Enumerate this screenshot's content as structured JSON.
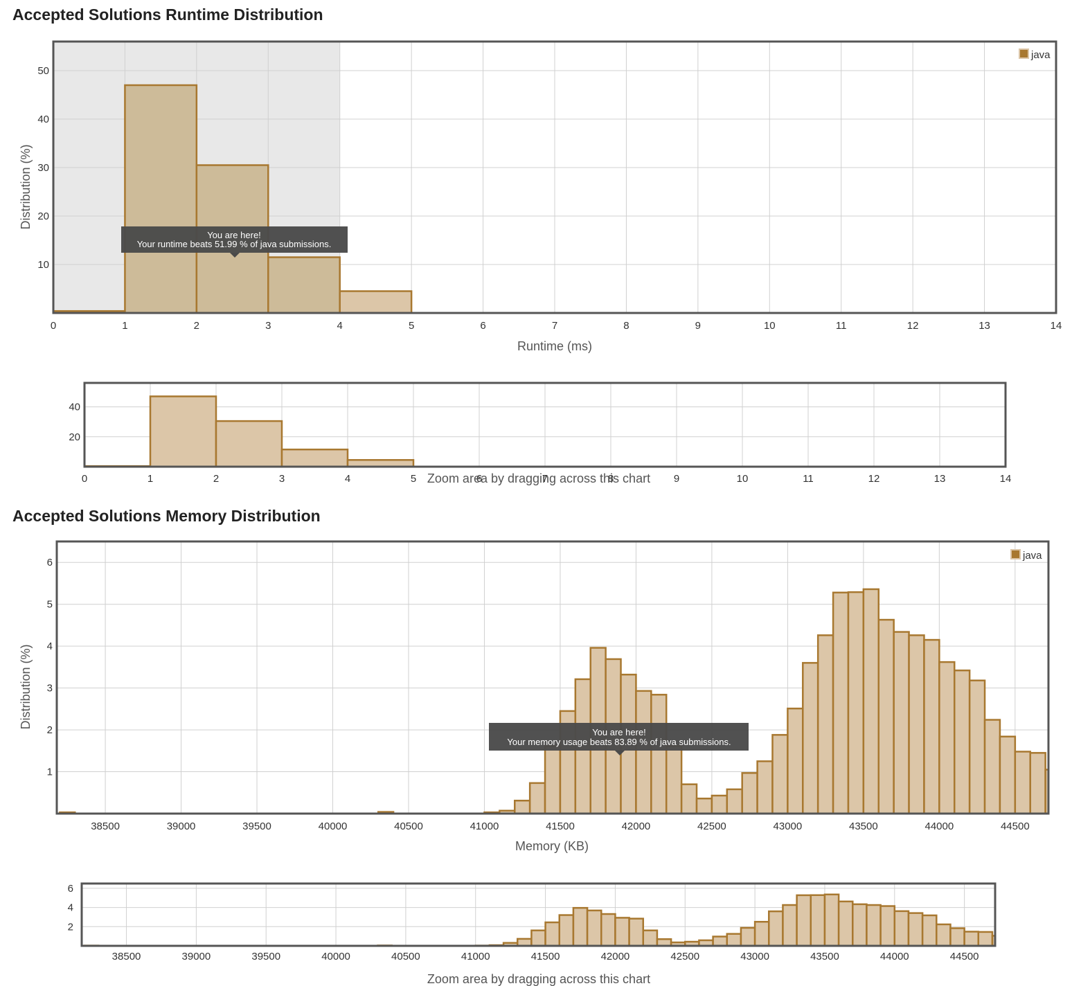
{
  "runtime_section": {
    "title": "Accepted Solutions Runtime Distribution",
    "legend": "java",
    "tooltip_line1": "You are here!",
    "tooltip_line2": "Your runtime beats 51.99 % of java submissions.",
    "zoom_hint": "Zoom area by dragging across this chart"
  },
  "memory_section": {
    "title": "Accepted Solutions Memory Distribution",
    "legend": "java",
    "tooltip_line1": "You are here!",
    "tooltip_line2": "Your memory usage beats 83.89 % of java submissions.",
    "zoom_hint": "Zoom area by dragging across this chart"
  },
  "colors": {
    "bar_fill": "#dcc6a8",
    "bar_stroke": "#a87830",
    "highlight_band": "#e8e8e8",
    "tooltip_bg": "#4a4a4a"
  },
  "chart_data": [
    {
      "type": "bar",
      "xlabel": "Runtime (ms)",
      "ylabel": "Distribution (%)",
      "xlim": [
        0,
        14
      ],
      "ylim": [
        0,
        56
      ],
      "xticks": [
        0,
        1,
        2,
        3,
        4,
        5,
        6,
        7,
        8,
        9,
        10,
        11,
        12,
        13,
        14
      ],
      "yticks": [
        10,
        20,
        30,
        40,
        50
      ],
      "highlight_range": [
        0,
        4
      ],
      "legend_position": "top-right",
      "series": [
        {
          "name": "java",
          "bin_width": 1,
          "x": [
            0,
            1,
            2,
            3,
            4
          ],
          "values": [
            0.4,
            47.0,
            30.5,
            11.5,
            4.5
          ]
        }
      ]
    },
    {
      "type": "bar",
      "xlabel": "Memory (KB)",
      "ylabel": "Distribution (%)",
      "xlim": [
        38180,
        44720
      ],
      "ylim": [
        0,
        6.5
      ],
      "xticks": [
        38500,
        39000,
        39500,
        40000,
        40500,
        41000,
        41500,
        42000,
        42500,
        43000,
        43500,
        44000,
        44500
      ],
      "yticks": [
        1,
        2,
        3,
        4,
        5,
        6
      ],
      "legend_position": "top-right",
      "series": [
        {
          "name": "java",
          "bin_width": 100,
          "x": [
            38200,
            40300,
            41000,
            41100,
            41200,
            41300,
            41400,
            41500,
            41600,
            41700,
            41800,
            41900,
            42000,
            42100,
            42200,
            42300,
            42400,
            42500,
            42600,
            42700,
            42800,
            42900,
            43000,
            43100,
            43200,
            43300,
            43400,
            43500,
            43600,
            43700,
            43800,
            43900,
            44000,
            44100,
            44200,
            44300,
            44400,
            44500,
            44600,
            44700
          ],
          "values": [
            0.03,
            0.04,
            0.03,
            0.07,
            0.31,
            0.73,
            1.61,
            2.45,
            3.21,
            3.96,
            3.69,
            3.32,
            2.93,
            2.84,
            1.61,
            0.7,
            0.36,
            0.43,
            0.58,
            0.97,
            1.25,
            1.88,
            2.51,
            3.6,
            4.26,
            5.28,
            5.29,
            5.36,
            4.63,
            4.34,
            4.26,
            4.15,
            3.62,
            3.42,
            3.18,
            2.24,
            1.84,
            1.48,
            1.45,
            1.05
          ]
        }
      ]
    },
    {
      "type": "bar",
      "xlim": [
        0,
        14
      ],
      "ylim": [
        0,
        56
      ],
      "xticks": [
        0,
        1,
        2,
        3,
        4,
        5,
        6,
        7,
        8,
        9,
        10,
        11,
        12,
        13,
        14
      ],
      "yticks": [
        20,
        40
      ],
      "series_ref": "runtime"
    },
    {
      "type": "bar",
      "xlim": [
        38180,
        44720
      ],
      "ylim": [
        0,
        6.5
      ],
      "xticks": [
        38500,
        39000,
        39500,
        40000,
        40500,
        41000,
        41500,
        42000,
        42500,
        43000,
        43500,
        44000,
        44500
      ],
      "yticks": [
        2,
        4,
        6
      ],
      "series_ref": "memory"
    }
  ]
}
